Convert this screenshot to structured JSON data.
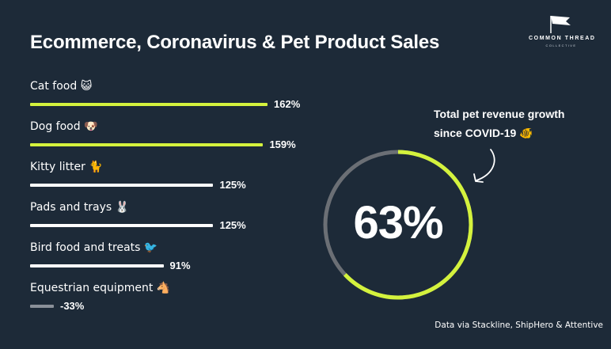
{
  "title": "Ecommerce, Coronavirus & Pet Product Sales",
  "logo": {
    "brand": "COMMON THREAD",
    "sub": "COLLECTIVE"
  },
  "source": "Data via Stackline, ShipHero & Attentive",
  "colors": {
    "background": "#1d2a38",
    "accent": "#d4f23d",
    "white": "#ffffff",
    "negative": "#8a9099",
    "ring_track": "#6b6f75"
  },
  "chart_data": [
    {
      "type": "bar",
      "orientation": "horizontal",
      "categories": [
        "Cat food 😺",
        "Dog food 🐶",
        "Kitty litter 🐈",
        "Pads and trays 🐰",
        "Bird food and treats 🐦",
        "Equestrian equipment 🐴"
      ],
      "values": [
        162,
        159,
        125,
        125,
        91,
        -33
      ],
      "value_labels": [
        "162%",
        "159%",
        "125%",
        "125%",
        "91%",
        "-33%"
      ],
      "unit": "%",
      "bar_colors": [
        "#d4f23d",
        "#d4f23d",
        "#ffffff",
        "#ffffff",
        "#ffffff",
        "#8a9099"
      ]
    },
    {
      "type": "pie",
      "style": "donut-progress",
      "value": 63,
      "value_label": "63%",
      "annotation": [
        "Total pet revenue growth",
        "since COVID-19 🐠"
      ]
    }
  ]
}
